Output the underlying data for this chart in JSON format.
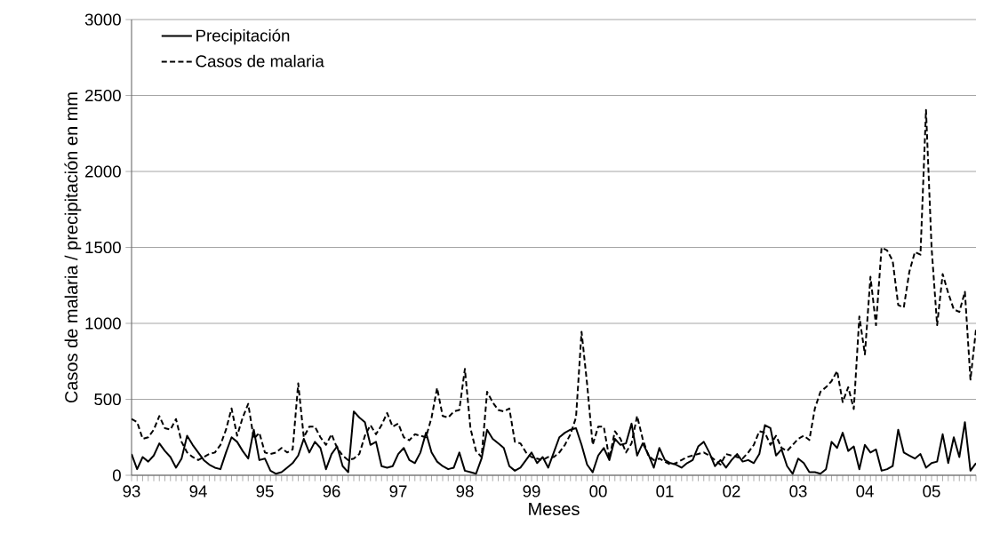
{
  "chart_data": {
    "type": "line",
    "xlabel": "Meses",
    "ylabel": "Casos de malaria / precipitación en mm",
    "categories": [
      "93",
      null,
      null,
      null,
      null,
      null,
      null,
      null,
      null,
      null,
      null,
      null,
      "94",
      null,
      null,
      null,
      null,
      null,
      null,
      null,
      null,
      null,
      null,
      null,
      "95",
      null,
      null,
      null,
      null,
      null,
      null,
      null,
      null,
      null,
      null,
      null,
      "96",
      null,
      null,
      null,
      null,
      null,
      null,
      null,
      null,
      null,
      null,
      null,
      "97",
      null,
      null,
      null,
      null,
      null,
      null,
      null,
      null,
      null,
      null,
      null,
      "98",
      null,
      null,
      null,
      null,
      null,
      null,
      null,
      null,
      null,
      null,
      null,
      "99",
      null,
      null,
      null,
      null,
      null,
      null,
      null,
      null,
      null,
      null,
      null,
      "00",
      null,
      null,
      null,
      null,
      null,
      null,
      null,
      null,
      null,
      null,
      null,
      "01",
      null,
      null,
      null,
      null,
      null,
      null,
      null,
      null,
      null,
      null,
      null,
      "02",
      null,
      null,
      null,
      null,
      null,
      null,
      null,
      null,
      null,
      null,
      null,
      "03",
      null,
      null,
      null,
      null,
      null,
      null,
      null,
      null,
      null,
      null,
      null,
      "04",
      null,
      null,
      null,
      null,
      null,
      null,
      null,
      null,
      null,
      null,
      null,
      "05",
      null,
      null,
      null,
      null,
      null,
      null,
      null,
      null
    ],
    "series": [
      {
        "name": "Precipitación",
        "color": "#000000",
        "line_style": "solid",
        "values": [
          140,
          40,
          120,
          90,
          130,
          210,
          160,
          120,
          50,
          110,
          260,
          200,
          150,
          100,
          70,
          50,
          40,
          150,
          250,
          220,
          160,
          110,
          300,
          100,
          110,
          30,
          10,
          20,
          50,
          80,
          130,
          240,
          150,
          220,
          180,
          40,
          140,
          190,
          60,
          20,
          420,
          380,
          350,
          200,
          220,
          60,
          50,
          60,
          140,
          180,
          100,
          80,
          150,
          280,
          150,
          90,
          60,
          40,
          50,
          150,
          30,
          20,
          10,
          110,
          300,
          240,
          210,
          180,
          60,
          30,
          50,
          100,
          150,
          80,
          120,
          50,
          150,
          250,
          280,
          300,
          310,
          200,
          70,
          20,
          130,
          180,
          100,
          240,
          200,
          210,
          340,
          130,
          210,
          140,
          50,
          180,
          100,
          80,
          70,
          50,
          80,
          100,
          190,
          220,
          150,
          60,
          100,
          50,
          100,
          140,
          90,
          100,
          80,
          140,
          330,
          310,
          130,
          170,
          60,
          10,
          110,
          80,
          20,
          20,
          10,
          40,
          220,
          180,
          280,
          160,
          190,
          40,
          200,
          150,
          170,
          30,
          40,
          60,
          300,
          150,
          130,
          110,
          140,
          50,
          80,
          90,
          270,
          80,
          250,
          120,
          350,
          30,
          80
        ]
      },
      {
        "name": "Casos de malaria",
        "color": "#000000",
        "line_style": "dashed",
        "values": [
          370,
          350,
          240,
          250,
          300,
          390,
          310,
          300,
          370,
          220,
          150,
          120,
          100,
          120,
          140,
          150,
          200,
          300,
          440,
          260,
          380,
          470,
          240,
          280,
          150,
          140,
          150,
          180,
          150,
          170,
          605,
          250,
          320,
          320,
          250,
          200,
          270,
          180,
          130,
          100,
          110,
          140,
          260,
          330,
          270,
          330,
          410,
          320,
          340,
          250,
          230,
          270,
          260,
          250,
          380,
          575,
          390,
          380,
          420,
          430,
          700,
          310,
          160,
          120,
          550,
          480,
          430,
          420,
          440,
          220,
          210,
          150,
          120,
          110,
          100,
          120,
          120,
          150,
          200,
          270,
          380,
          945,
          600,
          200,
          320,
          320,
          110,
          290,
          240,
          150,
          210,
          390,
          240,
          130,
          100,
          110,
          90,
          70,
          80,
          100,
          120,
          130,
          140,
          150,
          130,
          100,
          70,
          140,
          130,
          120,
          110,
          150,
          200,
          290,
          280,
          200,
          260,
          180,
          160,
          200,
          240,
          260,
          232,
          440,
          550,
          580,
          620,
          687,
          482,
          580,
          436,
          1046,
          796,
          1307,
          988,
          1499,
          1480,
          1412,
          1121,
          1104,
          1340,
          1470,
          1452,
          2405,
          1500,
          988,
          1325,
          1200,
          1092,
          1075,
          1208,
          630,
          960
        ]
      }
    ],
    "ylim": [
      0,
      3000
    ],
    "yticks": [
      0,
      500,
      1000,
      1500,
      2000,
      2500,
      3000
    ],
    "grid": "y",
    "legend": "top left"
  }
}
